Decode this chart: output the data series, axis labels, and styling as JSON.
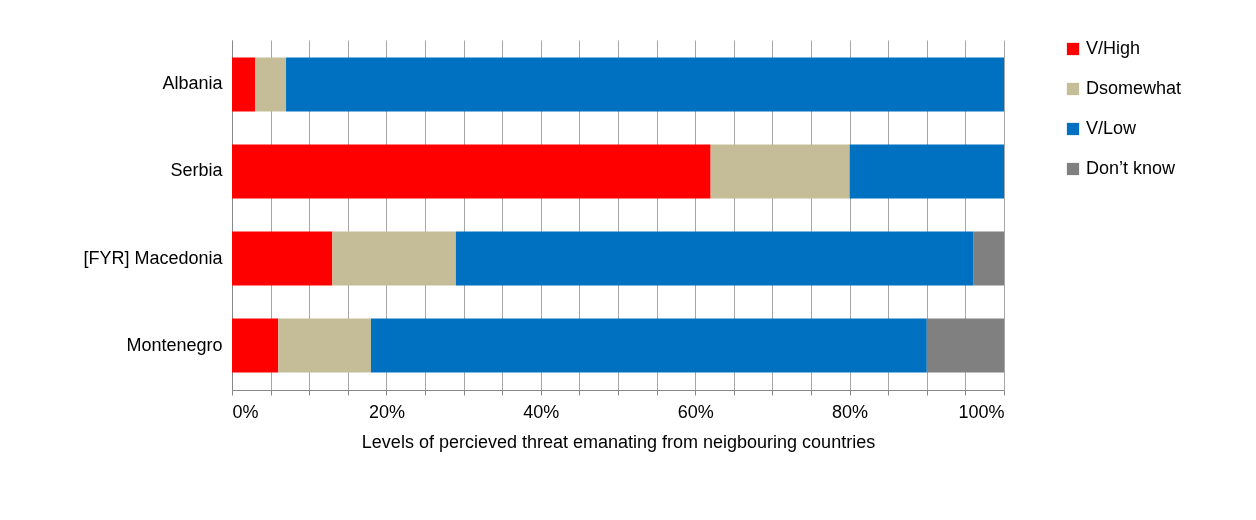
{
  "chart_data": {
    "type": "bar",
    "orientation": "horizontal",
    "stacked": true,
    "xlabel": "Levels of percieved threat emanating from neigbouring countries",
    "categories": [
      "Albania",
      "Serbia",
      "[FYR] Macedonia",
      "Montenegro"
    ],
    "series": [
      {
        "name": "V/High",
        "color": "#ff0000",
        "values": [
          3,
          62,
          13,
          6
        ]
      },
      {
        "name": "Dsomewhat",
        "color": "#c4bd97",
        "values": [
          4,
          18,
          16,
          12
        ]
      },
      {
        "name": "V/Low",
        "color": "#0070c0",
        "values": [
          93,
          20,
          67,
          72
        ]
      },
      {
        "name": "Don’t know",
        "color": "#808080",
        "values": [
          0,
          0,
          4,
          10
        ]
      }
    ],
    "xlim": [
      0,
      100
    ],
    "xticks": [
      {
        "value": 0,
        "label": "0%"
      },
      {
        "value": 5,
        "label": null
      },
      {
        "value": 10,
        "label": null
      },
      {
        "value": 15,
        "label": null
      },
      {
        "value": 20,
        "label": "20%"
      },
      {
        "value": 25,
        "label": null
      },
      {
        "value": 30,
        "label": null
      },
      {
        "value": 35,
        "label": null
      },
      {
        "value": 40,
        "label": "40%"
      },
      {
        "value": 45,
        "label": null
      },
      {
        "value": 50,
        "label": null
      },
      {
        "value": 55,
        "label": null
      },
      {
        "value": 60,
        "label": "60%"
      },
      {
        "value": 65,
        "label": null
      },
      {
        "value": 70,
        "label": null
      },
      {
        "value": 75,
        "label": null
      },
      {
        "value": 80,
        "label": "80%"
      },
      {
        "value": 85,
        "label": null
      },
      {
        "value": 90,
        "label": null
      },
      {
        "value": 95,
        "label": null
      },
      {
        "value": 100,
        "label": "100%"
      }
    ],
    "grid": "x",
    "legend": "right"
  }
}
